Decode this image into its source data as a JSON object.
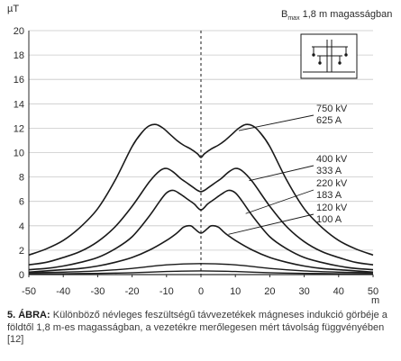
{
  "chart_data": {
    "type": "line",
    "title_main": "B",
    "title_sub": "max",
    "title_rest": " 1,8 m magasságban",
    "ylabel": "µT",
    "xlabel": "m",
    "xlim": [
      -50,
      50
    ],
    "ylim": [
      0,
      20
    ],
    "x_ticks": [
      -50,
      -40,
      -30,
      -20,
      -10,
      0,
      10,
      20,
      30,
      40,
      50
    ],
    "y_ticks": [
      0,
      2,
      4,
      6,
      8,
      10,
      12,
      14,
      16,
      18,
      20
    ],
    "grid": "horizontal",
    "series": [
      {
        "name": "750 kV 625 A",
        "label_lines": [
          "750 kV",
          "625 A"
        ],
        "x": [
          -50,
          -45,
          -40,
          -35,
          -30,
          -25,
          -20,
          -17,
          -15,
          -13,
          -11,
          -9,
          -7,
          -5,
          -3,
          -1,
          0,
          1,
          3,
          5,
          7,
          9,
          11,
          13,
          15,
          17,
          20,
          25,
          30,
          35,
          40,
          45,
          50
        ],
        "y": [
          1.6,
          2.1,
          2.8,
          3.9,
          5.4,
          7.7,
          10.5,
          11.7,
          12.2,
          12.3,
          12.0,
          11.5,
          11.0,
          10.6,
          10.3,
          9.9,
          9.6,
          9.9,
          10.3,
          10.6,
          11.0,
          11.5,
          12.0,
          12.3,
          12.2,
          11.7,
          10.5,
          7.7,
          5.4,
          3.9,
          2.8,
          2.1,
          1.6
        ]
      },
      {
        "name": "400 kV 333 A",
        "label_lines": [
          "400 kV",
          "333 A"
        ],
        "x": [
          -50,
          -45,
          -40,
          -35,
          -30,
          -25,
          -20,
          -15,
          -12,
          -10,
          -8,
          -6,
          -4,
          -2,
          -1,
          0,
          1,
          2,
          4,
          6,
          8,
          10,
          12,
          15,
          20,
          25,
          30,
          35,
          40,
          45,
          50
        ],
        "y": [
          0.8,
          1.0,
          1.4,
          1.9,
          2.7,
          3.9,
          5.6,
          7.6,
          8.5,
          8.7,
          8.4,
          7.9,
          7.5,
          7.1,
          6.9,
          6.8,
          6.9,
          7.1,
          7.5,
          7.9,
          8.4,
          8.7,
          8.5,
          7.6,
          5.6,
          3.9,
          2.7,
          1.9,
          1.4,
          1.0,
          0.8
        ]
      },
      {
        "name": "220 kV 183 A",
        "label_lines": [
          "220 kV",
          "183 A"
        ],
        "x": [
          -50,
          -45,
          -40,
          -35,
          -30,
          -25,
          -20,
          -15,
          -12,
          -10,
          -8,
          -6,
          -4,
          -2,
          -1,
          0,
          1,
          2,
          4,
          6,
          8,
          10,
          12,
          15,
          20,
          25,
          30,
          35,
          40,
          45,
          50
        ],
        "y": [
          0.4,
          0.5,
          0.7,
          1.0,
          1.4,
          2.1,
          3.1,
          4.8,
          6.0,
          6.7,
          6.9,
          6.6,
          6.2,
          5.8,
          5.5,
          5.3,
          5.5,
          5.8,
          6.2,
          6.6,
          6.9,
          6.7,
          6.0,
          4.8,
          3.1,
          2.1,
          1.4,
          1.0,
          0.7,
          0.5,
          0.4
        ]
      },
      {
        "name": "120 kV 100 A",
        "label_lines": [
          "120 kV",
          "100 A"
        ],
        "x": [
          -50,
          -45,
          -40,
          -35,
          -30,
          -25,
          -20,
          -15,
          -10,
          -7,
          -5,
          -3,
          -2,
          0,
          2,
          3,
          5,
          7,
          10,
          15,
          20,
          25,
          30,
          35,
          40,
          45,
          50
        ],
        "y": [
          0.2,
          0.3,
          0.4,
          0.5,
          0.7,
          1.0,
          1.4,
          2.0,
          2.8,
          3.4,
          3.9,
          4.0,
          3.8,
          3.4,
          3.8,
          4.0,
          3.9,
          3.4,
          2.8,
          2.0,
          1.4,
          1.0,
          0.7,
          0.5,
          0.4,
          0.3,
          0.2
        ]
      }
    ],
    "baseline_series": [
      {
        "x": [
          -50,
          -40,
          -30,
          -20,
          -10,
          0,
          10,
          20,
          30,
          40,
          50
        ],
        "y": [
          0.05,
          0.07,
          0.1,
          0.15,
          0.25,
          0.3,
          0.25,
          0.15,
          0.1,
          0.07,
          0.05
        ]
      },
      {
        "x": [
          -50,
          -40,
          -30,
          -20,
          -10,
          0,
          10,
          20,
          30,
          40,
          50
        ],
        "y": [
          0.15,
          0.2,
          0.3,
          0.5,
          0.8,
          0.9,
          0.8,
          0.5,
          0.3,
          0.2,
          0.15
        ]
      }
    ],
    "label_targets": [
      {
        "x": 11,
        "y": 11.8
      },
      {
        "x": 14,
        "y": 7.7
      },
      {
        "x": 13,
        "y": 5.0
      },
      {
        "x": 8,
        "y": 3.3
      }
    ],
    "colors": {
      "line": "#1a1a1a",
      "grid": "#c8c8c8",
      "axis": "#2a2a2a",
      "zero_line": "#1a1a1a"
    }
  },
  "caption": {
    "label": "5. ÁBRA:",
    "text": " Különböző névleges feszültségű távvezetékek mágneses indukció görbéje a földtől 1,8 m-es magasságban, a vezetékre merőlegesen mért távolság függvényében [12]"
  }
}
